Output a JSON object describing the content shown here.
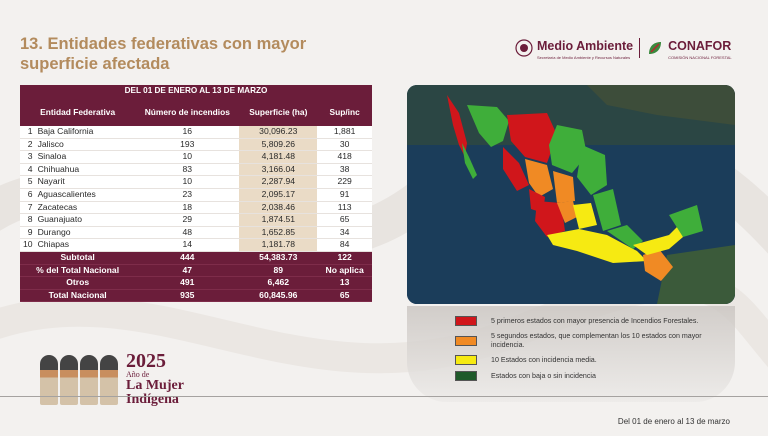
{
  "slide": {
    "title": "13. Entidades federativas con mayor superficie afectada",
    "footer_note": "Del 01 de enero al 13 de marzo"
  },
  "logos": {
    "medio_ambiente": "Medio Ambiente",
    "medio_ambiente_sub": "Secretaría de Medio Ambiente y Recursos Naturales",
    "conafor": "CONAFOR",
    "conafor_sub": "COMISIÓN NACIONAL FORESTAL"
  },
  "table": {
    "caption": "DEL 01 DE ENERO AL 13 DE MARZO",
    "headers": [
      "Entidad Federativa",
      "Número de incendios",
      "Superficie (ha)",
      "Sup/inc"
    ],
    "rows": [
      {
        "n": "1",
        "entidad": "Baja California",
        "incendios": "16",
        "superficie": "30,096.23",
        "supinc": "1,881"
      },
      {
        "n": "2",
        "entidad": "Jalisco",
        "incendios": "193",
        "superficie": "5,809.26",
        "supinc": "30"
      },
      {
        "n": "3",
        "entidad": "Sinaloa",
        "incendios": "10",
        "superficie": "4,181.48",
        "supinc": "418"
      },
      {
        "n": "4",
        "entidad": "Chihuahua",
        "incendios": "83",
        "superficie": "3,166.04",
        "supinc": "38"
      },
      {
        "n": "5",
        "entidad": "Nayarit",
        "incendios": "10",
        "superficie": "2,287.94",
        "supinc": "229"
      },
      {
        "n": "6",
        "entidad": "Aguascalientes",
        "incendios": "23",
        "superficie": "2,095.17",
        "supinc": "91"
      },
      {
        "n": "7",
        "entidad": "Zacatecas",
        "incendios": "18",
        "superficie": "2,038.46",
        "supinc": "113"
      },
      {
        "n": "8",
        "entidad": "Guanajuato",
        "incendios": "29",
        "superficie": "1,874.51",
        "supinc": "65"
      },
      {
        "n": "9",
        "entidad": "Durango",
        "incendios": "48",
        "superficie": "1,652.85",
        "supinc": "34"
      },
      {
        "n": "10",
        "entidad": "Chiapas",
        "incendios": "14",
        "superficie": "1,181.78",
        "supinc": "84"
      }
    ],
    "summary": [
      {
        "label": "Subtotal",
        "incendios": "444",
        "superficie": "54,383.73",
        "supinc": "122"
      },
      {
        "label": "% del Total Nacional",
        "incendios": "47",
        "superficie": "89",
        "supinc": "No aplica"
      },
      {
        "label": "Otros",
        "incendios": "491",
        "superficie": "6,462",
        "supinc": "13"
      },
      {
        "label": "Total Nacional",
        "incendios": "935",
        "superficie": "60,845.96",
        "supinc": "65"
      }
    ]
  },
  "legend": [
    {
      "color": "#d0161b",
      "text": "5 primeros estados con mayor presencia de Incendios Forestales."
    },
    {
      "color": "#f08a24",
      "text": "5 segundos estados, que complementan los 10 estados con mayor incidencia."
    },
    {
      "color": "#f6ea12",
      "text": "10 Estados con incidencia media."
    },
    {
      "color": "#1f5a2a",
      "text": "Estados con baja o sin incidencia"
    }
  ],
  "map_colors": {
    "top5": "#d0161b",
    "next5": "#f08a24",
    "media": "#f6ea12",
    "baja": "#3fae3a",
    "sea": "#1b3d5a"
  },
  "brand": {
    "year": "2025",
    "line1": "Año de",
    "line2": "La Mujer",
    "line3": "Indígena"
  }
}
